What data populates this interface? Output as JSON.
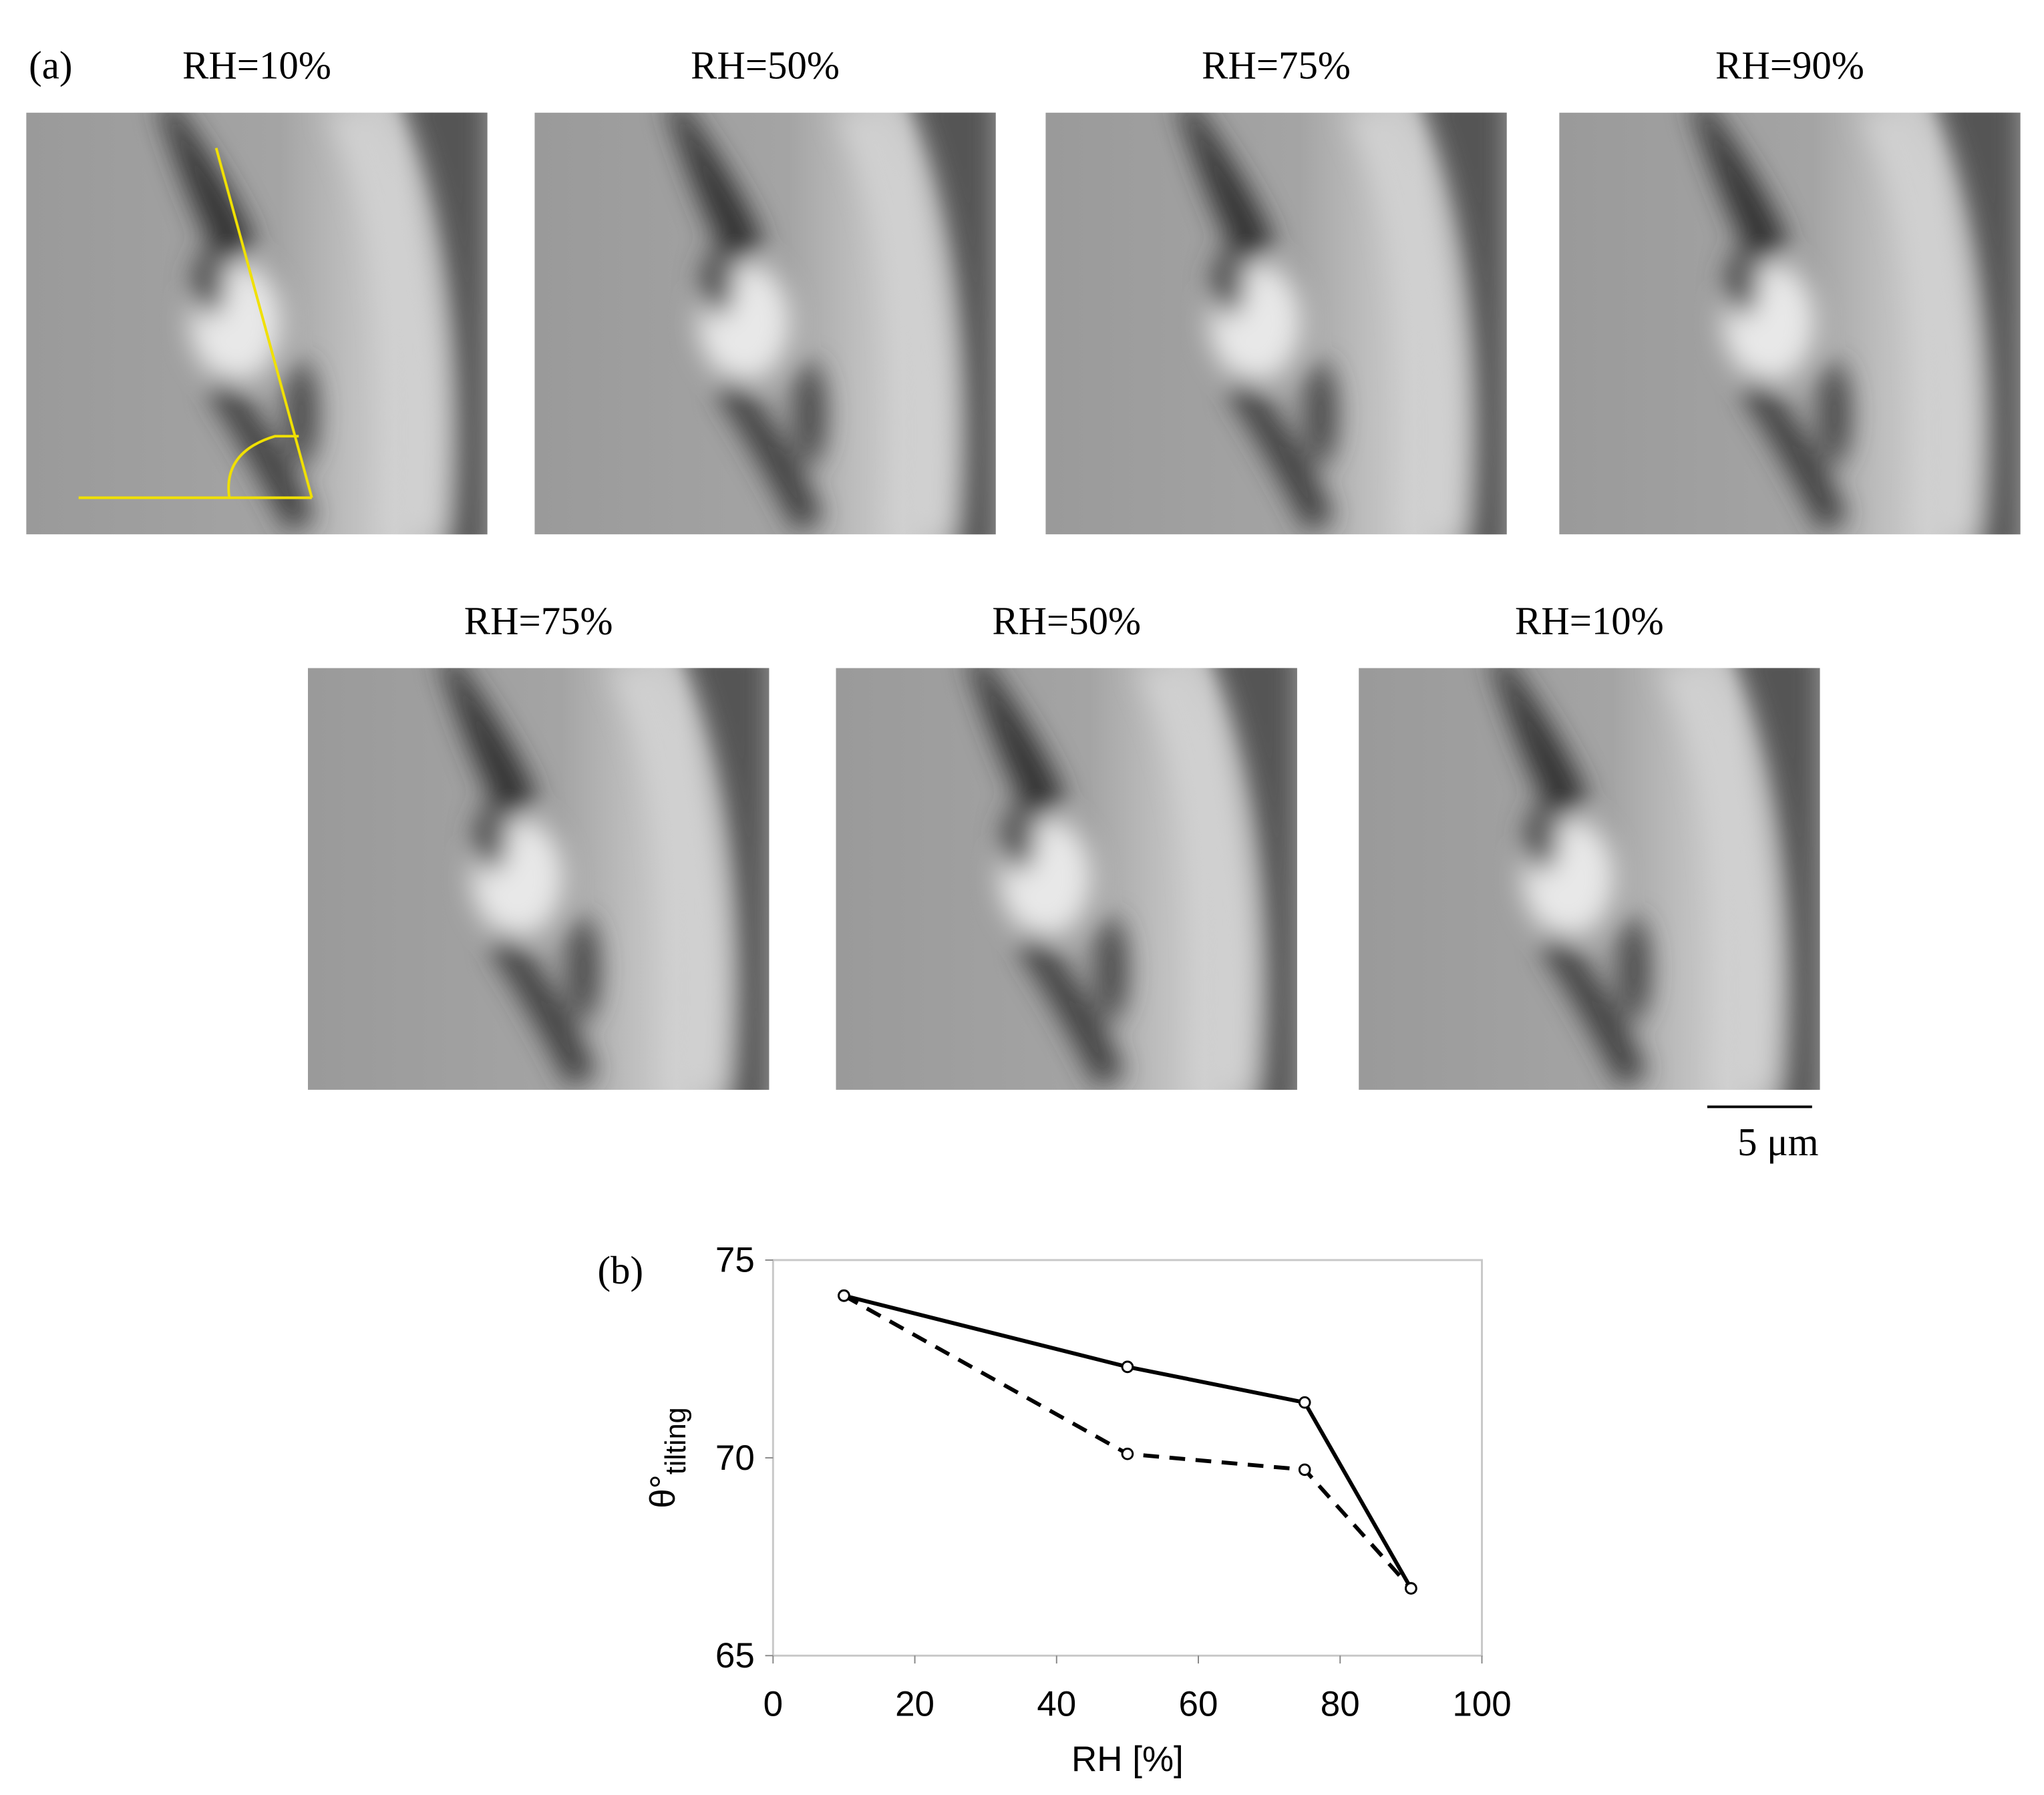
{
  "panel_a": {
    "label": "(a)",
    "images": [
      {
        "title": "RH=10%"
      },
      {
        "title": "RH=50%"
      },
      {
        "title": "RH=75%"
      },
      {
        "title": "RH=90%"
      },
      {
        "title": "RH=75%"
      },
      {
        "title": "RH=50%"
      },
      {
        "title": "RH=10%"
      }
    ],
    "scale_bar": "5 μm"
  },
  "panel_b": {
    "label": "(b)"
  },
  "chart_data": {
    "type": "line",
    "x": [
      10,
      50,
      75,
      90
    ],
    "series": [
      {
        "color": "#000000",
        "dash": "solid",
        "values": [
          74.1,
          72.3,
          71.4,
          66.7
        ]
      },
      {
        "color": "#000000",
        "dash": "dashed",
        "values": [
          74.1,
          70.1,
          69.7,
          66.7
        ]
      }
    ],
    "xlim": [
      0,
      100
    ],
    "ylim": [
      65,
      75
    ],
    "xticks": [
      0,
      20,
      40,
      60,
      80,
      100
    ],
    "yticks": [
      65,
      70,
      75
    ],
    "xlabel": "RH [%]",
    "ylabel": "θ°",
    "ylabel_sub": "tilting",
    "grid": false
  }
}
